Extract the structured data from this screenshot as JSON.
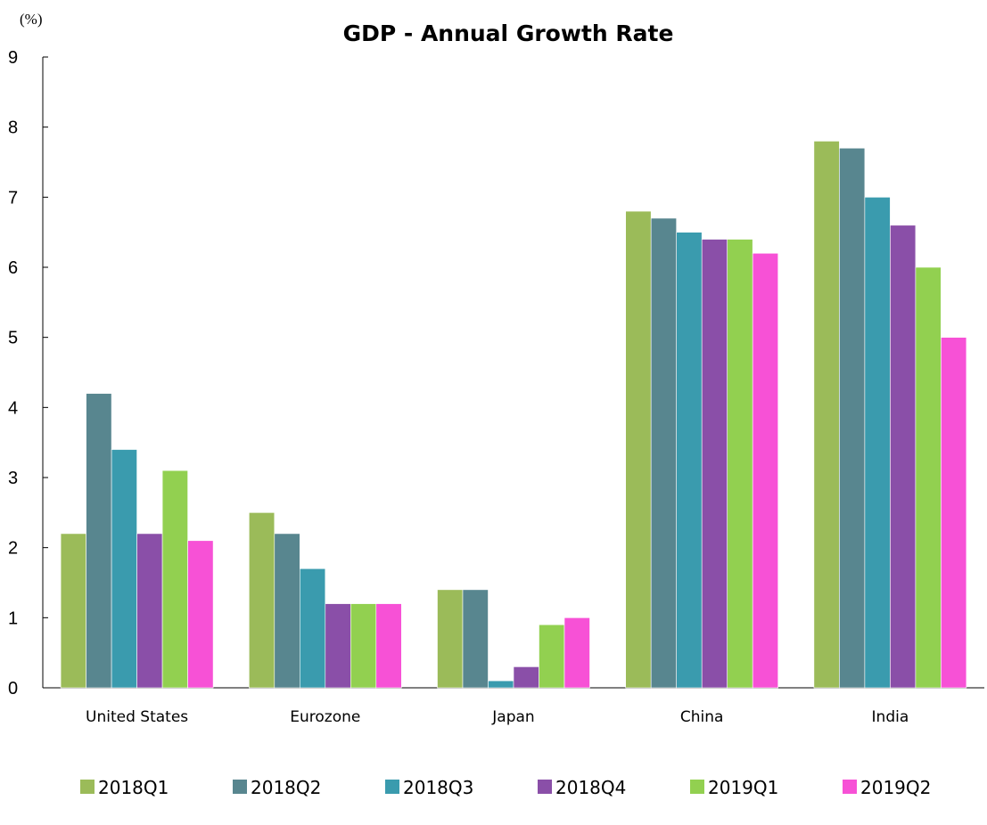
{
  "chart_data": {
    "type": "bar",
    "title": "GDP - Annual Growth Rate",
    "ylabel": "(%)",
    "xlabel": "",
    "ylim": [
      0,
      9
    ],
    "yticks": [
      0,
      1,
      2,
      3,
      4,
      5,
      6,
      7,
      8,
      9
    ],
    "categories": [
      "United States",
      "Eurozone",
      "Japan",
      "China",
      "India"
    ],
    "series": [
      {
        "name": "2018Q1",
        "color": "#9bbb59",
        "values": [
          2.2,
          2.5,
          1.4,
          6.8,
          7.8
        ]
      },
      {
        "name": "2018Q2",
        "color": "#58868f",
        "values": [
          4.2,
          2.2,
          1.4,
          6.7,
          7.7
        ]
      },
      {
        "name": "2018Q3",
        "color": "#3a9bae",
        "values": [
          3.4,
          1.7,
          0.1,
          6.5,
          7.0
        ]
      },
      {
        "name": "2018Q4",
        "color": "#8a4fa8",
        "values": [
          2.2,
          1.2,
          0.3,
          6.4,
          6.6
        ]
      },
      {
        "name": "2019Q1",
        "color": "#92d050",
        "values": [
          3.1,
          1.2,
          0.9,
          6.4,
          6.0
        ]
      },
      {
        "name": "2019Q2",
        "color": "#f751d6",
        "values": [
          2.1,
          1.2,
          1.0,
          6.2,
          5.0
        ]
      }
    ],
    "legend": "bottom",
    "grid": false
  }
}
